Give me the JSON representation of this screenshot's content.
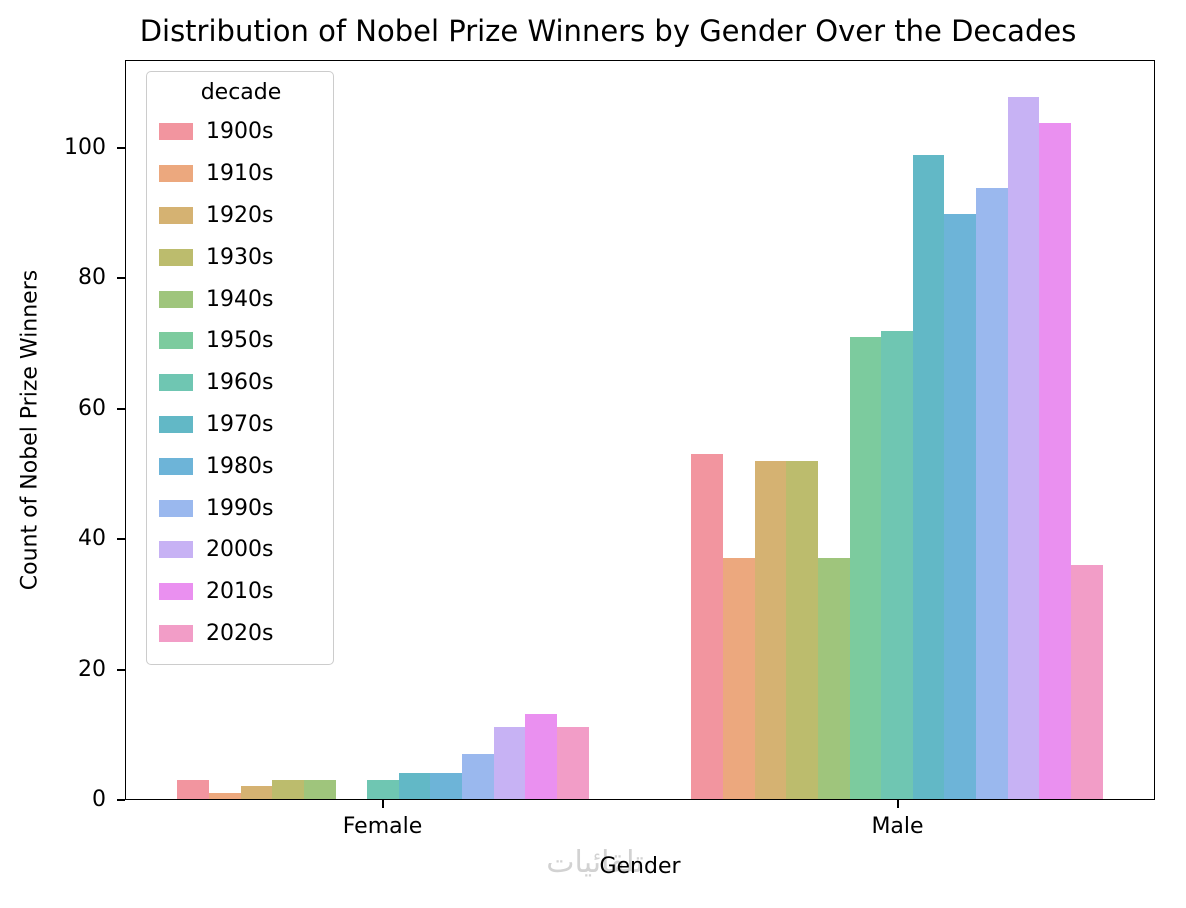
{
  "chart_data": {
    "type": "bar",
    "title": "Distribution of Nobel Prize Winners by Gender Over the Decades",
    "xlabel": "Gender",
    "ylabel": "Count of Nobel Prize Winners",
    "categories": [
      "Female",
      "Male"
    ],
    "legend_title": "decade",
    "legend_position": "upper left",
    "grid": false,
    "ylim": [
      0,
      113.5
    ],
    "yticks": [
      0,
      20,
      40,
      60,
      80,
      100
    ],
    "series": [
      {
        "name": "1900s",
        "color": "#f2959f",
        "values": [
          3,
          53
        ]
      },
      {
        "name": "1910s",
        "color": "#eca87e",
        "values": [
          1,
          37
        ]
      },
      {
        "name": "1920s",
        "color": "#d5b272",
        "values": [
          2,
          52
        ]
      },
      {
        "name": "1930s",
        "color": "#bcbc6d",
        "values": [
          3,
          52
        ]
      },
      {
        "name": "1940s",
        "color": "#9fc57c",
        "values": [
          3,
          37
        ]
      },
      {
        "name": "1950s",
        "color": "#7ccb9e",
        "values": [
          0,
          71
        ]
      },
      {
        "name": "1960s",
        "color": "#6fc6b2",
        "values": [
          3,
          72
        ]
      },
      {
        "name": "1970s",
        "color": "#62b8c6",
        "values": [
          4,
          99
        ]
      },
      {
        "name": "1980s",
        "color": "#6db4d8",
        "values": [
          4,
          90
        ]
      },
      {
        "name": "1990s",
        "color": "#9ab8ee",
        "values": [
          7,
          94
        ]
      },
      {
        "name": "2000s",
        "color": "#c7b2f4",
        "values": [
          11,
          108
        ]
      },
      {
        "name": "2010s",
        "color": "#ea90f0",
        "values": [
          13,
          104
        ]
      },
      {
        "name": "2020s",
        "color": "#f29dc7",
        "values": [
          11,
          36
        ]
      }
    ]
  },
  "watermark": "تلقائيات"
}
